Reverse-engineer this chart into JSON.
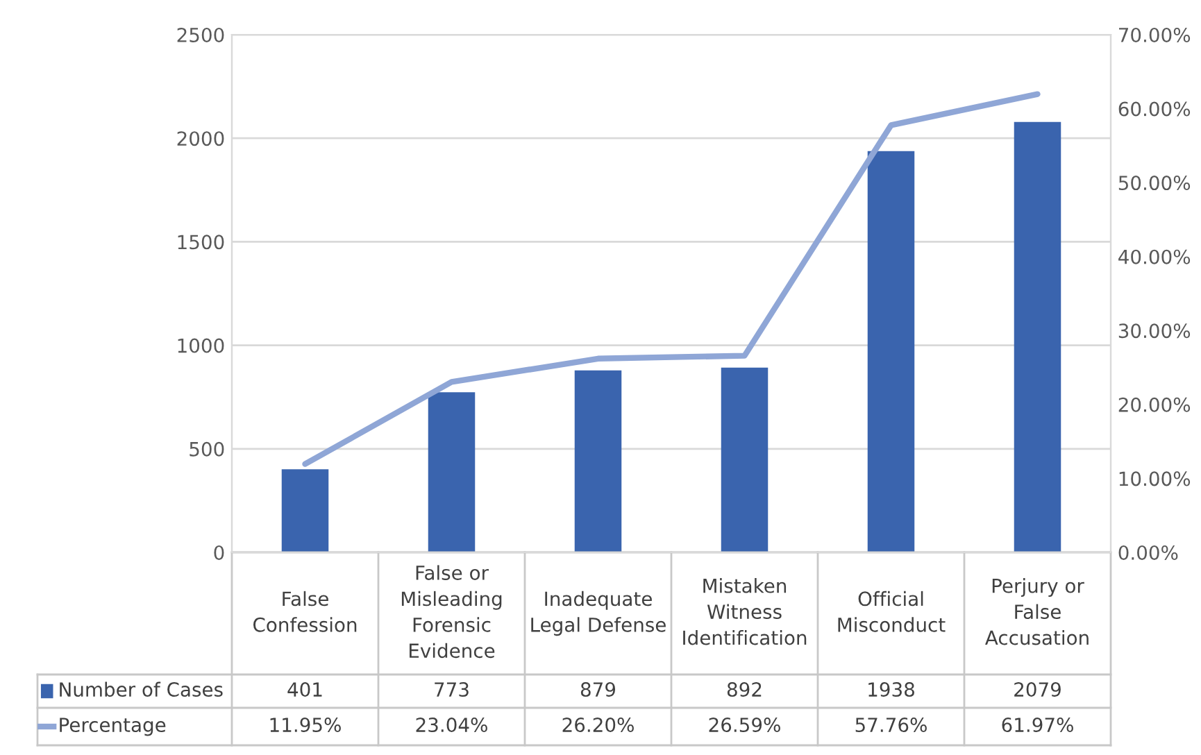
{
  "chart_data": {
    "type": "bar",
    "categories": [
      "False\nConfession",
      "False or\nMisleading\nForensic\nEvidence",
      "Inadequate\nLegal Defense",
      "Mistaken\nWitness\nIdentification",
      "Official\nMisconduct",
      "Perjury or\nFalse\nAccusation"
    ],
    "series": [
      {
        "name": "Number of Cases",
        "color": "#3a64ae",
        "values": [
          401,
          773,
          879,
          892,
          1938,
          2079
        ]
      },
      {
        "name": "Percentage",
        "type": "line",
        "axis": "y2",
        "color": "#8fa6d6",
        "values": [
          11.95,
          23.04,
          26.2,
          26.59,
          57.76,
          61.97
        ],
        "value_labels": [
          "11.95%",
          "23.04%",
          "26.20%",
          "26.59%",
          "57.76%",
          "61.97%"
        ]
      }
    ],
    "ylim": [
      0,
      2500
    ],
    "yticks": [
      0,
      500,
      1000,
      1500,
      2000,
      2500
    ],
    "y2lim": [
      0,
      70
    ],
    "y2ticks": [
      {
        "value": 0,
        "label": "0.00%"
      },
      {
        "value": 10,
        "label": "10.00%"
      },
      {
        "value": 20,
        "label": "20.00%"
      },
      {
        "value": 30,
        "label": "30.00%"
      },
      {
        "value": 40,
        "label": "40.00%"
      },
      {
        "value": 50,
        "label": "50.00%"
      },
      {
        "value": 60,
        "label": "60.00%"
      },
      {
        "value": 70,
        "label": "70.00%"
      }
    ],
    "grid": "y",
    "data_labels": true,
    "legend": "bottom left",
    "marker": "none",
    "line_style": "solid"
  }
}
